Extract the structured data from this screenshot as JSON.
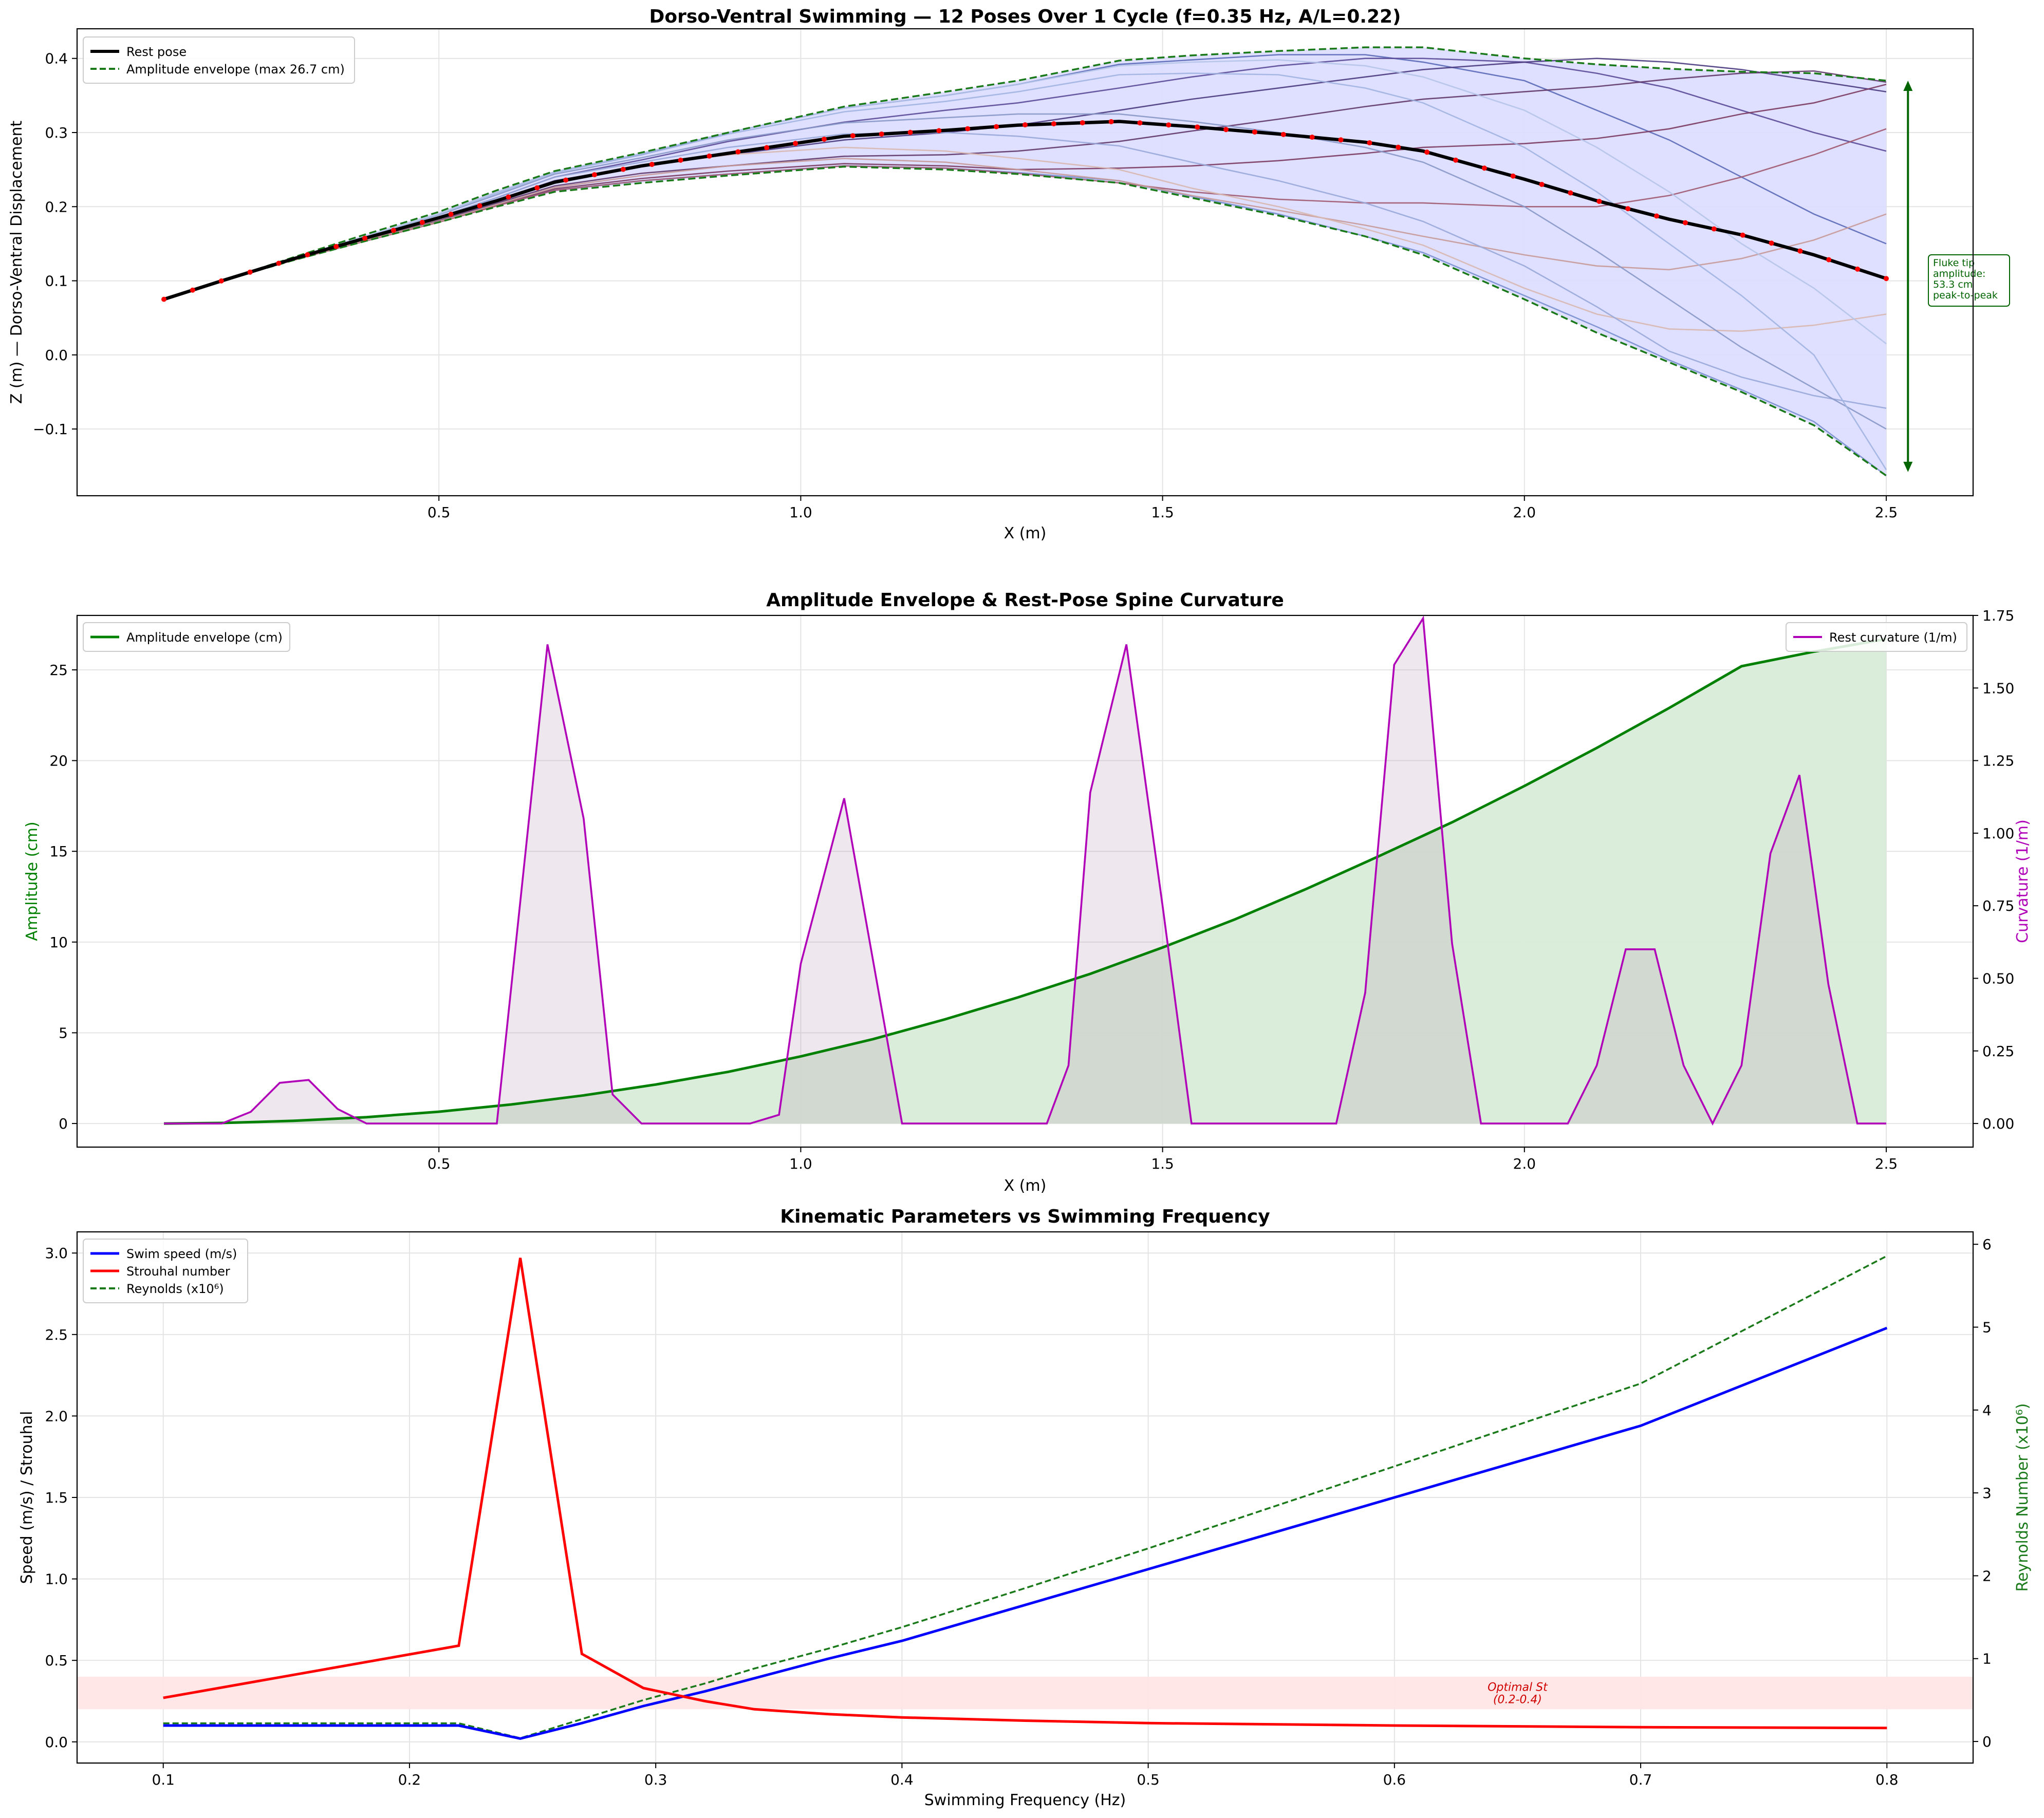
{
  "chart_data": [
    {
      "type": "line",
      "title": "Dorso-Ventral Swimming — 12 Poses Over 1 Cycle (f=0.35 Hz, A/L=0.22)",
      "xlabel": "X (m)",
      "ylabel": "Z (m) — Dorso-Ventral Displacement",
      "xlim": [
        0.0,
        2.62
      ],
      "ylim": [
        -0.19,
        0.44
      ],
      "xticks": [
        0.5,
        1.0,
        1.5,
        2.0,
        2.5
      ],
      "yticks": [
        -0.1,
        0.0,
        0.1,
        0.2,
        0.3,
        0.4
      ],
      "grid": true,
      "legend_position": "top-left",
      "legend": [
        "Rest pose",
        "Amplitude envelope (max 26.7 cm)"
      ],
      "annotation": "Fluke tip\namplitude:\n53.3 cm\npeak-to-peak",
      "x": [
        0.12,
        0.2,
        0.3,
        0.4,
        0.5,
        0.58,
        0.66,
        0.78,
        0.9,
        1.06,
        1.2,
        1.3,
        1.44,
        1.54,
        1.66,
        1.78,
        1.86,
        2.0,
        2.1,
        2.2,
        2.3,
        2.4,
        2.5
      ],
      "series": [
        {
          "name": "Rest pose",
          "values": [
            0.075,
            0.1,
            0.13,
            0.158,
            0.185,
            0.208,
            0.233,
            0.255,
            0.272,
            0.295,
            0.303,
            0.31,
            0.315,
            0.308,
            0.298,
            0.287,
            0.275,
            0.237,
            0.208,
            0.183,
            0.162,
            0.135,
            0.103
          ]
        },
        {
          "name": "Amplitude envelope (max 26.7 cm)",
          "values": [
            0.075,
            0.1,
            0.132,
            0.163,
            0.193,
            0.222,
            0.248,
            0.273,
            0.3,
            0.335,
            0.355,
            0.37,
            0.397,
            0.404,
            0.41,
            0.415,
            0.415,
            0.4,
            0.392,
            0.386,
            0.382,
            0.38,
            0.37
          ]
        },
        {
          "values": [
            0.075,
            0.1,
            0.128,
            0.155,
            0.18,
            0.205,
            0.222,
            0.235,
            0.244,
            0.255,
            0.252,
            0.246,
            0.235,
            0.214,
            0.19,
            0.16,
            0.138,
            0.08,
            0.038,
            -0.007,
            -0.047,
            -0.09,
            -0.163
          ]
        },
        {
          "values": [
            0.075,
            0.1,
            0.13,
            0.16,
            0.19,
            0.219,
            0.247,
            0.27,
            0.3,
            0.333,
            0.35,
            0.365,
            0.392,
            0.398,
            0.405,
            0.405,
            0.395,
            0.37,
            0.33,
            0.29,
            0.24,
            0.19,
            0.15
          ]
        },
        {
          "values": [
            0.075,
            0.1,
            0.13,
            0.158,
            0.186,
            0.212,
            0.24,
            0.263,
            0.288,
            0.314,
            0.33,
            0.34,
            0.36,
            0.375,
            0.39,
            0.4,
            0.4,
            0.395,
            0.38,
            0.36,
            0.33,
            0.3,
            0.275
          ]
        },
        {
          "values": [
            0.075,
            0.1,
            0.13,
            0.158,
            0.184,
            0.209,
            0.235,
            0.255,
            0.27,
            0.29,
            0.3,
            0.31,
            0.33,
            0.345,
            0.36,
            0.375,
            0.385,
            0.395,
            0.4,
            0.395,
            0.385,
            0.37,
            0.355
          ]
        },
        {
          "values": [
            0.075,
            0.1,
            0.129,
            0.156,
            0.182,
            0.205,
            0.228,
            0.245,
            0.255,
            0.268,
            0.27,
            0.275,
            0.288,
            0.302,
            0.318,
            0.335,
            0.345,
            0.355,
            0.362,
            0.372,
            0.38,
            0.383,
            0.368
          ]
        },
        {
          "values": [
            0.075,
            0.1,
            0.128,
            0.155,
            0.18,
            0.202,
            0.224,
            0.238,
            0.248,
            0.258,
            0.255,
            0.25,
            0.252,
            0.255,
            0.262,
            0.272,
            0.28,
            0.285,
            0.292,
            0.305,
            0.325,
            0.34,
            0.365
          ]
        },
        {
          "values": [
            0.075,
            0.1,
            0.128,
            0.154,
            0.179,
            0.201,
            0.222,
            0.235,
            0.244,
            0.255,
            0.252,
            0.245,
            0.232,
            0.22,
            0.21,
            0.205,
            0.205,
            0.2,
            0.2,
            0.215,
            0.24,
            0.27,
            0.305
          ]
        },
        {
          "values": [
            0.075,
            0.1,
            0.128,
            0.155,
            0.18,
            0.203,
            0.226,
            0.242,
            0.255,
            0.265,
            0.26,
            0.25,
            0.235,
            0.215,
            0.195,
            0.175,
            0.16,
            0.135,
            0.12,
            0.115,
            0.13,
            0.155,
            0.19
          ]
        },
        {
          "values": [
            0.075,
            0.1,
            0.129,
            0.157,
            0.183,
            0.208,
            0.234,
            0.255,
            0.27,
            0.28,
            0.275,
            0.265,
            0.25,
            0.225,
            0.2,
            0.17,
            0.148,
            0.09,
            0.055,
            0.035,
            0.032,
            0.04,
            0.055
          ]
        },
        {
          "values": [
            0.075,
            0.1,
            0.13,
            0.158,
            0.186,
            0.212,
            0.24,
            0.26,
            0.28,
            0.298,
            0.3,
            0.295,
            0.282,
            0.26,
            0.235,
            0.205,
            0.18,
            0.12,
            0.065,
            0.005,
            -0.03,
            -0.055,
            -0.072
          ]
        },
        {
          "values": [
            0.075,
            0.1,
            0.13,
            0.16,
            0.189,
            0.216,
            0.244,
            0.266,
            0.29,
            0.313,
            0.32,
            0.325,
            0.325,
            0.315,
            0.3,
            0.28,
            0.26,
            0.2,
            0.14,
            0.075,
            0.01,
            -0.045,
            -0.1
          ]
        },
        {
          "values": [
            0.075,
            0.1,
            0.13,
            0.16,
            0.19,
            0.218,
            0.246,
            0.27,
            0.298,
            0.328,
            0.342,
            0.355,
            0.378,
            0.38,
            0.378,
            0.36,
            0.34,
            0.28,
            0.22,
            0.15,
            0.08,
            0.0,
            -0.155
          ]
        },
        {
          "values": [
            0.075,
            0.1,
            0.13,
            0.16,
            0.19,
            0.219,
            0.247,
            0.272,
            0.3,
            0.333,
            0.35,
            0.365,
            0.39,
            0.395,
            0.398,
            0.39,
            0.375,
            0.33,
            0.28,
            0.22,
            0.15,
            0.09,
            0.015
          ]
        }
      ],
      "lower_envelope": [
        0.075,
        0.1,
        0.128,
        0.154,
        0.179,
        0.2,
        0.22,
        0.232,
        0.242,
        0.254,
        0.25,
        0.244,
        0.232,
        0.212,
        0.188,
        0.16,
        0.135,
        0.075,
        0.03,
        -0.01,
        -0.05,
        -0.095,
        -0.163
      ]
    },
    {
      "type": "line",
      "title": "Amplitude Envelope & Rest-Pose Spine Curvature",
      "xlabel": "X (m)",
      "ylabel": "Amplitude (cm)",
      "ylabel_right": "Curvature (1/m)",
      "xlim": [
        0.0,
        2.62
      ],
      "ylim": [
        -1.3,
        28.0
      ],
      "ylim_right": [
        -0.0813,
        1.75
      ],
      "xticks": [
        0.5,
        1.0,
        1.5,
        2.0,
        2.5
      ],
      "yticks": [
        0,
        5,
        10,
        15,
        20,
        25
      ],
      "yticks_right": [
        0.0,
        0.25,
        0.5,
        0.75,
        1.0,
        1.25,
        1.5,
        1.75
      ],
      "grid": true,
      "legend": [
        "Amplitude envelope (cm)",
        "Rest curvature (1/m)"
      ],
      "amplitude": {
        "name": "Amplitude envelope (cm)",
        "x": [
          0.12,
          0.2,
          0.3,
          0.4,
          0.5,
          0.6,
          0.7,
          0.8,
          0.9,
          1.0,
          1.1,
          1.2,
          1.3,
          1.4,
          1.5,
          1.6,
          1.7,
          1.8,
          1.9,
          2.0,
          2.1,
          2.2,
          2.3,
          2.4,
          2.5
        ],
        "values": [
          0.0,
          0.03,
          0.15,
          0.35,
          0.65,
          1.05,
          1.55,
          2.15,
          2.85,
          3.7,
          4.65,
          5.75,
          6.95,
          8.25,
          9.7,
          11.25,
          12.95,
          14.75,
          16.6,
          18.6,
          20.7,
          22.9,
          25.2,
          26.0,
          26.7
        ]
      },
      "curvature": {
        "name": "Rest curvature (1/m)",
        "x": [
          0.12,
          0.2,
          0.24,
          0.28,
          0.32,
          0.36,
          0.4,
          0.58,
          0.65,
          0.7,
          0.74,
          0.78,
          0.93,
          0.97,
          1.0,
          1.06,
          1.14,
          1.34,
          1.37,
          1.4,
          1.45,
          1.5,
          1.54,
          1.74,
          1.78,
          1.82,
          1.86,
          1.9,
          1.94,
          2.06,
          2.1,
          2.14,
          2.18,
          2.22,
          2.26,
          2.3,
          2.34,
          2.38,
          2.42,
          2.46,
          2.5
        ],
        "values": [
          0.0,
          0.0,
          0.04,
          0.14,
          0.15,
          0.05,
          0.0,
          0.0,
          1.65,
          1.05,
          0.1,
          0.0,
          0.0,
          0.03,
          0.55,
          1.12,
          0.0,
          0.0,
          0.2,
          1.14,
          1.65,
          0.75,
          0.0,
          0.0,
          0.45,
          1.58,
          1.74,
          0.62,
          0.0,
          0.0,
          0.2,
          0.6,
          0.6,
          0.2,
          0.0,
          0.2,
          0.93,
          1.2,
          0.48,
          0.0,
          0.0
        ]
      }
    },
    {
      "type": "line",
      "title": "Kinematic Parameters vs Swimming Frequency",
      "xlabel": "Swimming Frequency (Hz)",
      "ylabel": "Speed (m/s) / Strouhal",
      "ylabel_right": "Reynolds Number (x10⁶)",
      "xlim": [
        0.065,
        0.835
      ],
      "ylim": [
        -0.13,
        3.13
      ],
      "ylim_right": [
        -0.26,
        6.15
      ],
      "xticks": [
        0.1,
        0.2,
        0.3,
        0.4,
        0.5,
        0.6,
        0.7,
        0.8
      ],
      "yticks": [
        0.0,
        0.5,
        1.0,
        1.5,
        2.0,
        2.5,
        3.0
      ],
      "yticks_right": [
        0,
        1,
        2,
        3,
        4,
        5,
        6
      ],
      "grid": true,
      "legend_position": "top-left",
      "legend": [
        "Swim speed (m/s)",
        "Strouhal number",
        "Reynolds (x10⁶)"
      ],
      "band": {
        "from": 0.2,
        "to": 0.4,
        "label": "Optimal St\n(0.2-0.4)"
      },
      "x": [
        0.1,
        0.22,
        0.245,
        0.27,
        0.295,
        0.32,
        0.34,
        0.37,
        0.4,
        0.45,
        0.5,
        0.6,
        0.7,
        0.8
      ],
      "series": [
        {
          "name": "Swim speed (m/s)",
          "axis": "left",
          "values": [
            0.1,
            0.1,
            0.02,
            0.115,
            0.22,
            0.31,
            0.39,
            0.51,
            0.62,
            0.84,
            1.06,
            1.5,
            1.94,
            2.54
          ]
        },
        {
          "name": "Strouhal number",
          "axis": "left",
          "values": [
            0.27,
            0.59,
            2.97,
            0.54,
            0.33,
            0.25,
            0.2,
            0.17,
            0.15,
            0.13,
            0.115,
            0.1,
            0.09,
            0.085
          ]
        },
        {
          "name": "Reynolds (x10⁶)",
          "axis": "right",
          "values": [
            0.22,
            0.22,
            0.04,
            0.27,
            0.5,
            0.7,
            0.88,
            1.12,
            1.38,
            1.85,
            2.33,
            3.32,
            4.32,
            5.86
          ]
        }
      ]
    }
  ],
  "colors": {
    "rest_pose": "#000000",
    "rest_markers": "#ff0000",
    "envelope": "#1a7a1a",
    "envelope_fill": "#dcdcff",
    "annotation": "#006400",
    "amplitude": "#008000",
    "amplitude_fill": "#d8ecd8",
    "curvature": "#b000b8",
    "curvature_fill": "#ecdcec",
    "speed": "#0000ff",
    "strouhal": "#ff0000",
    "reynolds": "#1a7a1a",
    "band": "#ffe6e6",
    "band_text": "#d00000",
    "pose_palette": [
      "#7a8fd0",
      "#5a6ab8",
      "#5a4a98",
      "#4a3a80",
      "#60386a",
      "#7a3a60",
      "#a05a70",
      "#c89a98",
      "#d8b8b0",
      "#98a8d8",
      "#8898c8",
      "#a0b4e0",
      "#b4c4e8"
    ]
  }
}
